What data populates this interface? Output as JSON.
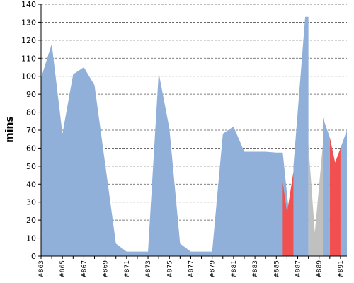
{
  "chart_data": {
    "type": "area",
    "title": "",
    "xlabel": "",
    "ylabel": "mins",
    "ylim": [
      0,
      140
    ],
    "yticks": [
      0,
      10,
      20,
      30,
      40,
      50,
      60,
      70,
      80,
      90,
      100,
      110,
      120,
      130,
      140
    ],
    "grid": true,
    "legend": "none",
    "x_labels": [
      "#863",
      "#865",
      "#867",
      "#869",
      "#871",
      "#873",
      "#875",
      "#877",
      "#879",
      "#881",
      "#883",
      "#885",
      "#887",
      "#889",
      "#891"
    ],
    "series": [
      {
        "color": "#90b0d9",
        "points": [
          [
            863,
            99
          ],
          [
            864,
            118
          ],
          [
            865,
            68
          ],
          [
            866,
            101
          ],
          [
            867,
            105
          ],
          [
            868,
            95
          ],
          [
            869,
            51
          ],
          [
            870,
            7
          ],
          [
            871,
            2.5
          ],
          [
            872,
            2.5
          ],
          [
            873,
            2.5
          ],
          [
            874,
            102
          ],
          [
            875,
            71
          ],
          [
            876,
            7
          ],
          [
            877,
            2.5
          ],
          [
            878,
            2.5
          ],
          [
            879,
            2.5
          ],
          [
            880,
            68
          ],
          [
            881,
            72
          ],
          [
            882,
            58
          ],
          [
            883,
            58
          ],
          [
            884,
            58
          ],
          [
            885,
            57.5
          ],
          [
            885.6,
            57.5
          ],
          [
            886.6,
            0
          ],
          [
            886.6,
            50
          ],
          [
            887.7,
            133
          ],
          [
            888,
            133
          ],
          [
            888,
            0
          ],
          [
            889.35,
            0
          ],
          [
            889.35,
            77
          ],
          [
            890,
            66
          ],
          [
            890,
            0
          ],
          [
            891,
            0
          ],
          [
            891,
            60
          ],
          [
            891.6,
            70
          ]
        ]
      },
      {
        "color": "#f05050",
        "points": [
          [
            885.6,
            41
          ],
          [
            886,
            24
          ],
          [
            886.6,
            47
          ]
        ]
      },
      {
        "color": "#c0c0c0",
        "points": [
          [
            888,
            62
          ],
          [
            888.6,
            13
          ],
          [
            889.35,
            62
          ]
        ]
      },
      {
        "color": "#f05050",
        "points": [
          [
            890,
            66
          ],
          [
            890.5,
            52
          ],
          [
            891,
            60
          ]
        ]
      }
    ]
  }
}
